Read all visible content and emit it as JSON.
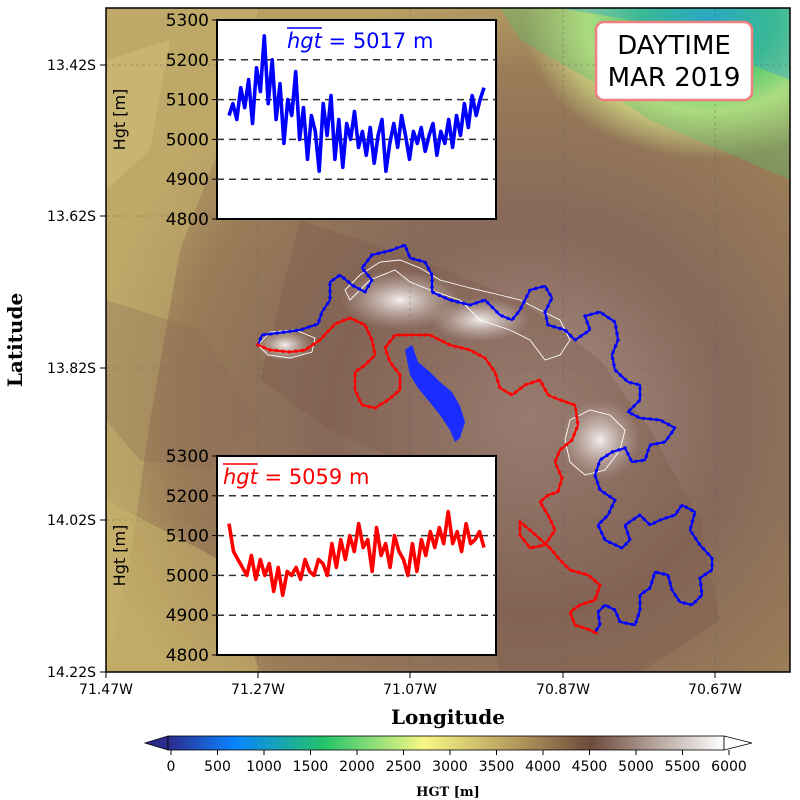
{
  "map": {
    "badge_line1": "DAYTIME",
    "badge_line2": "MAR 2019",
    "xlabel": "Longitude",
    "ylabel": "Latitude",
    "x_ticks": [
      "71.47W",
      "71.27W",
      "71.07W",
      "70.87W",
      "70.67W"
    ],
    "y_ticks": [
      "13.42S",
      "13.62S",
      "13.82S",
      "14.02S",
      "14.22S"
    ],
    "colors": {
      "north_boundary": "#0000ff",
      "south_boundary": "#ff0000",
      "lake": "#1a2cff",
      "contour": "#ffffff",
      "badge_border": "#f08080"
    }
  },
  "colorbar": {
    "label": "HGT [m]",
    "ticks": [
      "0",
      "500",
      "1000",
      "1500",
      "2000",
      "2500",
      "3000",
      "3500",
      "4000",
      "4500",
      "5000",
      "5500",
      "6000"
    ],
    "stops": [
      "#2b2b8c",
      "#0a84ff",
      "#23c46a",
      "#f7f785",
      "#b79d5e",
      "#6e4b3c",
      "#ffffff"
    ]
  },
  "chart_data": [
    {
      "type": "line",
      "annotation_var": "hgt",
      "annotation_value": " = 5017 m",
      "ylabel": "Hgt [m]",
      "ylim": [
        4800,
        5300
      ],
      "yticks": [
        "5300",
        "5200",
        "5100",
        "5000",
        "4900",
        "4800"
      ],
      "gridlines": [
        5200,
        5100,
        5000,
        4900
      ],
      "color": "#0000ff",
      "values": [
        5060,
        5090,
        5050,
        5130,
        5080,
        5150,
        5040,
        5180,
        5120,
        5260,
        5090,
        5200,
        5050,
        5140,
        4990,
        5100,
        5060,
        5170,
        5000,
        5080,
        4950,
        5060,
        5020,
        4920,
        5090,
        5010,
        5110,
        4950,
        5050,
        4930,
        5040,
        5000,
        5070,
        4980,
        5020,
        4960,
        5030,
        4940,
        5010,
        5050,
        4920,
        4990,
        5040,
        4980,
        5060,
        5010,
        4950,
        5020,
        4990,
        5030,
        4970,
        5010,
        5040,
        4960,
        5020,
        4990,
        5050,
        4980,
        5060,
        5010,
        5090,
        5030,
        5110,
        5060,
        5100,
        5130
      ]
    },
    {
      "type": "line",
      "annotation_var": "hgt",
      "annotation_value": " = 5059 m",
      "ylabel": "Hgt [m]",
      "ylim": [
        4800,
        5300
      ],
      "yticks": [
        "5300",
        "5200",
        "5100",
        "5000",
        "4900",
        "4800"
      ],
      "gridlines": [
        5200,
        5100,
        5000,
        4900
      ],
      "color": "#ff0000",
      "values": [
        5130,
        5060,
        5040,
        5020,
        5000,
        5050,
        4990,
        5040,
        5000,
        5030,
        4960,
        5020,
        4950,
        5010,
        5000,
        5020,
        4990,
        5040,
        5010,
        5000,
        5040,
        5030,
        5000,
        5080,
        5020,
        5090,
        5040,
        5100,
        5060,
        5130,
        5070,
        5090,
        5010,
        5120,
        5050,
        5080,
        5020,
        5100,
        5060,
        5040,
        5000,
        5080,
        5010,
        5090,
        5050,
        5110,
        5070,
        5120,
        5080,
        5160,
        5080,
        5110,
        5060,
        5130,
        5080,
        5090,
        5110,
        5070
      ]
    }
  ]
}
